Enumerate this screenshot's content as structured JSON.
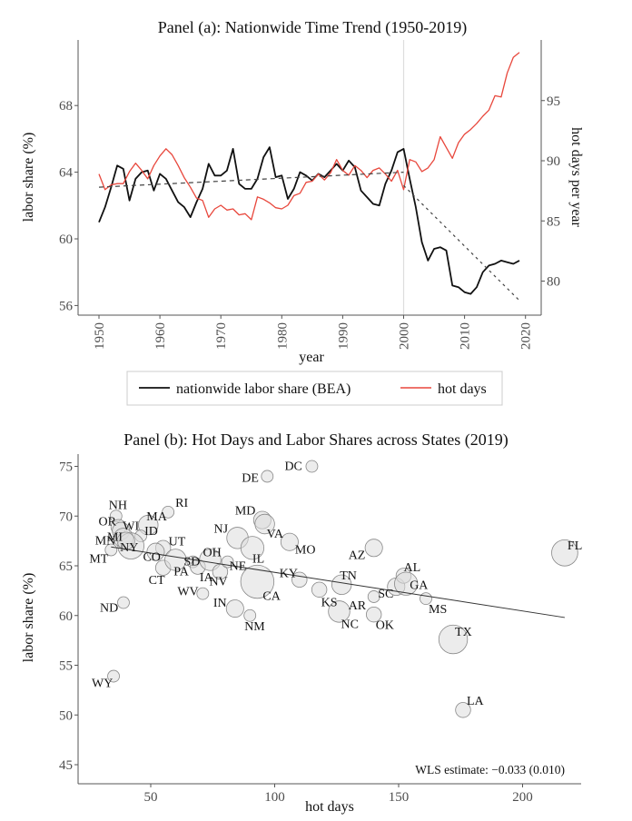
{
  "chart_data": [
    {
      "type": "line",
      "title": "Panel (a): Nationwide Time Trend (1950-2019)",
      "xlabel": "year",
      "ylabel": "labor share (%)",
      "ylabel_right": "hot days per year",
      "xlim": [
        1947,
        2022
      ],
      "ylim": [
        55.5,
        72
      ],
      "ylim_right": [
        77.7,
        99.5
      ],
      "xticks": [
        1950,
        1960,
        1970,
        1980,
        1990,
        2000,
        2010,
        2020
      ],
      "yticks": [
        56,
        60,
        64,
        68
      ],
      "yticks_right": [
        80,
        85,
        90,
        95
      ],
      "vline_x": 2000,
      "legend": {
        "placement": "bottom",
        "entries": [
          "nationwide labor share (BEA)",
          "hot days"
        ]
      },
      "series": [
        {
          "name": "nationwide labor share (BEA)",
          "axis": "left",
          "color": "#111111",
          "x": [
            1950,
            1951,
            1952,
            1953,
            1954,
            1955,
            1956,
            1957,
            1958,
            1959,
            1960,
            1961,
            1962,
            1963,
            1964,
            1965,
            1966,
            1967,
            1968,
            1969,
            1970,
            1971,
            1972,
            1973,
            1974,
            1975,
            1976,
            1977,
            1978,
            1979,
            1980,
            1981,
            1982,
            1983,
            1984,
            1985,
            1986,
            1987,
            1988,
            1989,
            1990,
            1991,
            1992,
            1993,
            1994,
            1995,
            1996,
            1997,
            1998,
            1999,
            2000,
            2001,
            2002,
            2003,
            2004,
            2005,
            2006,
            2007,
            2008,
            2009,
            2010,
            2011,
            2012,
            2013,
            2014,
            2015,
            2016,
            2017,
            2018,
            2019
          ],
          "values": [
            61.0,
            61.9,
            63.1,
            64.4,
            64.2,
            62.3,
            63.6,
            64.0,
            64.1,
            62.9,
            63.9,
            63.6,
            62.9,
            62.2,
            61.9,
            61.3,
            62.2,
            63.0,
            64.5,
            63.8,
            63.8,
            64.1,
            65.4,
            63.3,
            63.0,
            63.0,
            63.6,
            64.9,
            65.5,
            63.7,
            63.8,
            62.4,
            63.0,
            64.0,
            63.8,
            63.5,
            63.9,
            63.7,
            64.1,
            64.5,
            64.1,
            64.7,
            64.3,
            62.9,
            62.5,
            62.1,
            62.0,
            63.3,
            64.1,
            65.2,
            65.4,
            63.6,
            61.9,
            59.8,
            58.7,
            59.4,
            59.5,
            59.3,
            57.2,
            57.1,
            56.8,
            56.7,
            57.1,
            58.0,
            58.4,
            58.5,
            58.7,
            58.6,
            58.5,
            58.7
          ]
        },
        {
          "name": "hot days",
          "axis": "right",
          "color": "#e8473c",
          "x": [
            1950,
            1951,
            1952,
            1953,
            1954,
            1955,
            1956,
            1957,
            1958,
            1959,
            1960,
            1961,
            1962,
            1963,
            1964,
            1965,
            1966,
            1967,
            1968,
            1969,
            1970,
            1971,
            1972,
            1973,
            1974,
            1975,
            1976,
            1977,
            1978,
            1979,
            1980,
            1981,
            1982,
            1983,
            1984,
            1985,
            1986,
            1987,
            1988,
            1989,
            1990,
            1991,
            1992,
            1993,
            1994,
            1995,
            1996,
            1997,
            1998,
            1999,
            2000,
            2001,
            2002,
            2003,
            2004,
            2005,
            2006,
            2007,
            2008,
            2009,
            2010,
            2011,
            2012,
            2013,
            2014,
            2015,
            2016,
            2017,
            2018,
            2019
          ],
          "values": [
            88.9,
            87.6,
            88.0,
            88.1,
            88.1,
            89.1,
            89.8,
            89.2,
            88.5,
            89.6,
            90.4,
            91.0,
            90.5,
            89.6,
            88.6,
            87.8,
            86.9,
            86.7,
            85.3,
            86.0,
            86.3,
            85.9,
            86.0,
            85.5,
            85.6,
            85.1,
            87.0,
            86.8,
            86.5,
            86.1,
            86.0,
            86.3,
            87.1,
            87.3,
            88.2,
            88.3,
            88.9,
            88.4,
            89.0,
            90.1,
            89.2,
            88.8,
            89.6,
            89.2,
            88.6,
            89.2,
            89.4,
            88.9,
            88.3,
            89.2,
            87.6,
            90.1,
            89.9,
            89.1,
            89.4,
            90.1,
            92.0,
            91.1,
            90.2,
            91.5,
            92.2,
            92.6,
            93.1,
            93.7,
            94.2,
            95.4,
            95.3,
            97.3,
            98.6,
            99.0
          ]
        },
        {
          "name": "trend 1950-2000",
          "axis": "left",
          "style": "dashed",
          "color": "#444444",
          "x": [
            1950,
            2000
          ],
          "values": [
            63.1,
            64.0
          ]
        },
        {
          "name": "trend 2000-2019",
          "axis": "left",
          "style": "dotted",
          "color": "#444444",
          "x": [
            2000,
            2019
          ],
          "values": [
            63.2,
            56.3
          ]
        }
      ]
    },
    {
      "type": "scatter",
      "title": "Panel (b): Hot Days and Labor Shares across States (2019)",
      "xlabel": "hot days",
      "ylabel": "labor share (%)",
      "xlim": [
        26,
        228
      ],
      "ylim": [
        43.5,
        76
      ],
      "xticks": [
        50,
        100,
        150,
        200
      ],
      "yticks": [
        45,
        50,
        55,
        60,
        65,
        70,
        75
      ],
      "annotation": "WLS estimate:  −0.033 (0.010)",
      "fit_line": {
        "x": [
          34,
          217
        ],
        "y": [
          66.9,
          59.8
        ]
      },
      "points": [
        {
          "label": "RI",
          "x": 57,
          "y": 70.4,
          "size": 1
        },
        {
          "label": "NH",
          "x": 36,
          "y": 70.0,
          "size": 1
        },
        {
          "label": "MA",
          "x": 49,
          "y": 69.1,
          "size": 4
        },
        {
          "label": "OR",
          "x": 37,
          "y": 68.9,
          "size": 2
        },
        {
          "label": "WI",
          "x": 38,
          "y": 68.5,
          "size": 3
        },
        {
          "label": "ID",
          "x": 46,
          "y": 68.0,
          "size": 1
        },
        {
          "label": "MI",
          "x": 39,
          "y": 67.8,
          "size": 4
        },
        {
          "label": "NY",
          "x": 42,
          "y": 67.0,
          "size": 8
        },
        {
          "label": "MN",
          "x": 40,
          "y": 67.5,
          "size": 3
        },
        {
          "label": "MT",
          "x": 34,
          "y": 66.6,
          "size": 1
        },
        {
          "label": "UT",
          "x": 55,
          "y": 66.8,
          "size": 2
        },
        {
          "label": "CO",
          "x": 52,
          "y": 66.4,
          "size": 3
        },
        {
          "label": "CT",
          "x": 55,
          "y": 64.8,
          "size": 2
        },
        {
          "label": "PA",
          "x": 60,
          "y": 65.6,
          "size": 5
        },
        {
          "label": "SD",
          "x": 67,
          "y": 65.4,
          "size": 1
        },
        {
          "label": "IA",
          "x": 69,
          "y": 64.9,
          "size": 2
        },
        {
          "label": "OH",
          "x": 74,
          "y": 65.6,
          "size": 5
        },
        {
          "label": "WV",
          "x": 71,
          "y": 62.2,
          "size": 1
        },
        {
          "label": "NV",
          "x": 78,
          "y": 64.4,
          "size": 2
        },
        {
          "label": "NE",
          "x": 81,
          "y": 65.4,
          "size": 1
        },
        {
          "label": "NJ",
          "x": 85,
          "y": 67.8,
          "size": 5
        },
        {
          "label": "IL",
          "x": 91,
          "y": 66.8,
          "size": 6
        },
        {
          "label": "MD",
          "x": 95,
          "y": 69.6,
          "size": 3
        },
        {
          "label": "VA",
          "x": 96,
          "y": 69.2,
          "size": 4
        },
        {
          "label": "MO",
          "x": 106,
          "y": 67.4,
          "size": 3
        },
        {
          "label": "DE",
          "x": 97,
          "y": 74.0,
          "size": 1
        },
        {
          "label": "DC",
          "x": 115,
          "y": 75.0,
          "size": 1
        },
        {
          "label": "CA",
          "x": 93,
          "y": 63.4,
          "size": 14
        },
        {
          "label": "KY",
          "x": 110,
          "y": 63.6,
          "size": 2
        },
        {
          "label": "IN",
          "x": 84,
          "y": 60.7,
          "size": 3
        },
        {
          "label": "NM",
          "x": 90,
          "y": 60.0,
          "size": 1
        },
        {
          "label": "KS",
          "x": 118,
          "y": 62.6,
          "size": 2
        },
        {
          "label": "TN",
          "x": 127,
          "y": 63.1,
          "size": 4
        },
        {
          "label": "NC",
          "x": 126,
          "y": 60.4,
          "size": 5
        },
        {
          "label": "AZ",
          "x": 140,
          "y": 66.8,
          "size": 3
        },
        {
          "label": "AR",
          "x": 140,
          "y": 61.9,
          "size": 1
        },
        {
          "label": "OK",
          "x": 140,
          "y": 60.1,
          "size": 2
        },
        {
          "label": "SC",
          "x": 149,
          "y": 62.9,
          "size": 3
        },
        {
          "label": "AL",
          "x": 152,
          "y": 64.0,
          "size": 2
        },
        {
          "label": "GA",
          "x": 153,
          "y": 63.2,
          "size": 6
        },
        {
          "label": "MS",
          "x": 161,
          "y": 61.7,
          "size": 1
        },
        {
          "label": "TX",
          "x": 172,
          "y": 57.6,
          "size": 10
        },
        {
          "label": "LA",
          "x": 176,
          "y": 50.5,
          "size": 2
        },
        {
          "label": "FL",
          "x": 217,
          "y": 66.3,
          "size": 8
        },
        {
          "label": "ND",
          "x": 39,
          "y": 61.3,
          "size": 1
        },
        {
          "label": "WY",
          "x": 35,
          "y": 53.9,
          "size": 1
        }
      ]
    }
  ]
}
